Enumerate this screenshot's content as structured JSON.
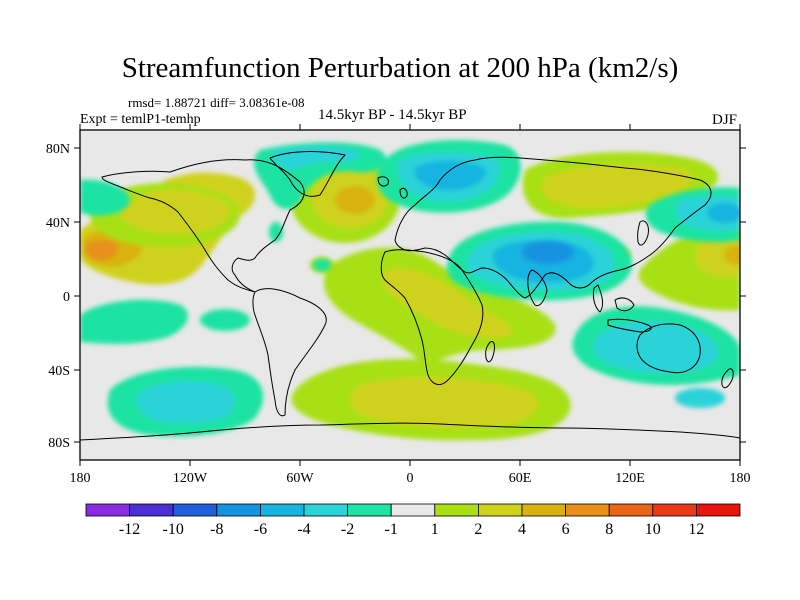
{
  "title": "Streamfunction Perturbation at 200 hPa (km2/s)",
  "stats": "rmsd= 1.88721 diff= 3.08361e-08",
  "expt": "Expt = temlP1-temhp",
  "period": "14.5kyr BP - 14.5kyr BP",
  "season": "DJF",
  "lat_ticks": [
    "80N",
    "40N",
    "0",
    "40S",
    "80S"
  ],
  "lon_ticks": [
    "180",
    "120W",
    "60W",
    "0",
    "60E",
    "120E",
    "180"
  ],
  "colorbar": {
    "labels": [
      "-12",
      "-10",
      "-8",
      "-6",
      "-4",
      "-2",
      "-1",
      "1",
      "2",
      "4",
      "6",
      "8",
      "10",
      "12"
    ],
    "colors": [
      "#8a2be2",
      "#4b2ed6",
      "#1f5fdc",
      "#1493e0",
      "#17b4e0",
      "#2ad3d8",
      "#1fe3a2",
      "#e8e8e8",
      "#a8e012",
      "#cfd21b",
      "#d9b20f",
      "#e8901a",
      "#ea6418",
      "#e93a16",
      "#e8150f"
    ]
  },
  "colors": {
    "background": "#e8e8e8"
  }
}
